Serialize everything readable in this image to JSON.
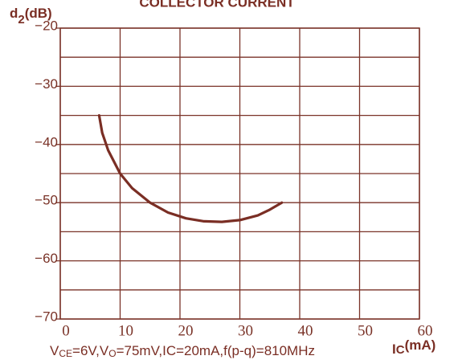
{
  "chart_data": {
    "type": "line",
    "title": "COLLECTOR CURRENT",
    "y_label": {
      "main": "d",
      "sub": "2",
      "unit": "(dB)"
    },
    "x_label": {
      "main": "I",
      "sub": "C",
      "unit": "(mA)"
    },
    "note": [
      "V",
      "CE",
      "=6V,V",
      "O",
      "=75mV,IC=20mA,f(p-q)=810MHz"
    ],
    "xlim": [
      0,
      60
    ],
    "xticks": [
      0,
      10,
      20,
      30,
      40,
      50,
      60
    ],
    "ylim": [
      -70,
      -20
    ],
    "yticks": [
      {
        "value": -20,
        "label": "−20"
      },
      {
        "value": -30,
        "label": "−30"
      },
      {
        "value": -40,
        "label": "−40"
      },
      {
        "value": -50,
        "label": "−50"
      },
      {
        "value": -60,
        "label": "−60"
      },
      {
        "value": -70,
        "label": "−70"
      }
    ],
    "y_minor_ticks": [
      -25,
      -35,
      -45,
      -55,
      -65
    ],
    "grid": true,
    "series": [
      {
        "color": "#7a2e24",
        "x": [
          6.5,
          7,
          8,
          10,
          12,
          15,
          18,
          21,
          24,
          27,
          30,
          33,
          35,
          37
        ],
        "values": [
          -35,
          -38,
          -41,
          -45,
          -47.5,
          -50,
          -51.7,
          -52.7,
          -53.2,
          -53.3,
          -53,
          -52.2,
          -51.2,
          -50
        ]
      }
    ]
  }
}
